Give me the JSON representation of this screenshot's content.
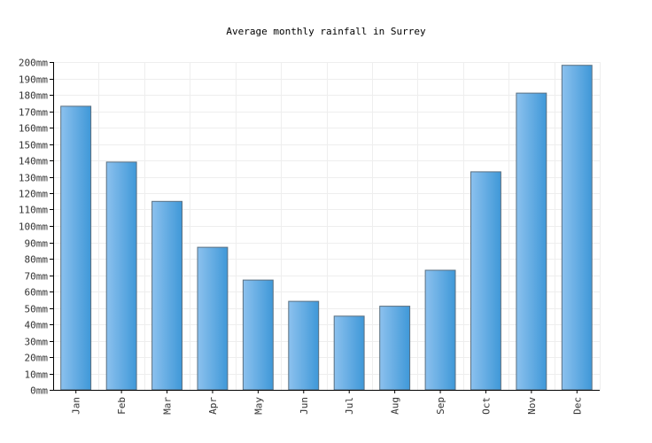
{
  "chart_data": {
    "type": "bar",
    "title": "Average monthly rainfall in Surrey",
    "xlabel": "",
    "ylabel": "",
    "categories": [
      "Jan",
      "Feb",
      "Mar",
      "Apr",
      "May",
      "Jun",
      "Jul",
      "Aug",
      "Sep",
      "Oct",
      "Nov",
      "Dec"
    ],
    "values": [
      173,
      139,
      115,
      87,
      67,
      54,
      45,
      51,
      73,
      133,
      181,
      198
    ],
    "unit": "mm",
    "ylim": [
      0,
      200
    ],
    "ytick_step": 10,
    "ytick_labels": [
      "0mm",
      "10mm",
      "20mm",
      "30mm",
      "40mm",
      "50mm",
      "60mm",
      "70mm",
      "80mm",
      "90mm",
      "100mm",
      "110mm",
      "120mm",
      "130mm",
      "140mm",
      "150mm",
      "160mm",
      "170mm",
      "180mm",
      "190mm",
      "200mm"
    ],
    "grid": true,
    "legend": "none",
    "colors": {
      "bar_light": "#8cc1ee",
      "bar_dark": "#3f98d8",
      "bar_edge": "#5a6f80",
      "grid": "#eeeeee",
      "axis": "#000000"
    }
  }
}
